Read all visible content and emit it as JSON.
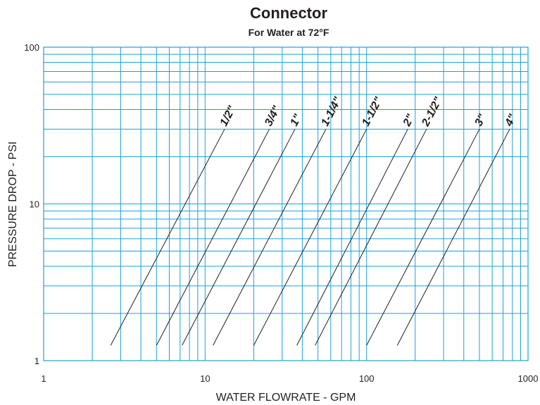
{
  "chart_data": {
    "type": "line",
    "title": "Connector",
    "subtitle": "For Water at 72°F",
    "xlabel": "WATER FLOWRATE - GPM",
    "ylabel": "PRESSURE DROP - PSI",
    "x_scale": "log",
    "y_scale": "log",
    "xlim": [
      1,
      1000
    ],
    "ylim": [
      1,
      100
    ],
    "x_ticks": [
      {
        "value": 1,
        "label": "1"
      },
      {
        "value": 10,
        "label": "10"
      },
      {
        "value": 100,
        "label": "100"
      },
      {
        "value": 1000,
        "label": "1000"
      }
    ],
    "y_ticks": [
      {
        "value": 1,
        "label": "1"
      },
      {
        "value": 10,
        "label": "10"
      },
      {
        "value": 100,
        "label": "100"
      }
    ],
    "grid": true,
    "colors": {
      "grid": "#1ea0d7",
      "line": "#231f20",
      "text": "#231f20"
    },
    "series": [
      {
        "name": "1/2\"",
        "points": [
          {
            "x": 2.6,
            "y": 1.25
          },
          {
            "x": 13.2,
            "y": 30
          }
        ]
      },
      {
        "name": "3/4\"",
        "points": [
          {
            "x": 5.0,
            "y": 1.25
          },
          {
            "x": 25.0,
            "y": 30
          }
        ]
      },
      {
        "name": "1\"",
        "points": [
          {
            "x": 7.2,
            "y": 1.25
          },
          {
            "x": 36.0,
            "y": 30
          }
        ]
      },
      {
        "name": "1-1/4\"",
        "points": [
          {
            "x": 11.2,
            "y": 1.25
          },
          {
            "x": 56.0,
            "y": 30
          }
        ]
      },
      {
        "name": "1-1/2\"",
        "points": [
          {
            "x": 20.0,
            "y": 1.25
          },
          {
            "x": 100.0,
            "y": 30
          }
        ]
      },
      {
        "name": "2\"",
        "points": [
          {
            "x": 37.0,
            "y": 1.25
          },
          {
            "x": 180.0,
            "y": 30
          }
        ]
      },
      {
        "name": "2-1/2\"",
        "points": [
          {
            "x": 48.0,
            "y": 1.25
          },
          {
            "x": 235.0,
            "y": 30
          }
        ]
      },
      {
        "name": "3\"",
        "points": [
          {
            "x": 100.0,
            "y": 1.25
          },
          {
            "x": 500.0,
            "y": 30
          }
        ]
      },
      {
        "name": "4\"",
        "points": [
          {
            "x": 155.0,
            "y": 1.25
          },
          {
            "x": 770.0,
            "y": 30
          }
        ]
      }
    ]
  }
}
